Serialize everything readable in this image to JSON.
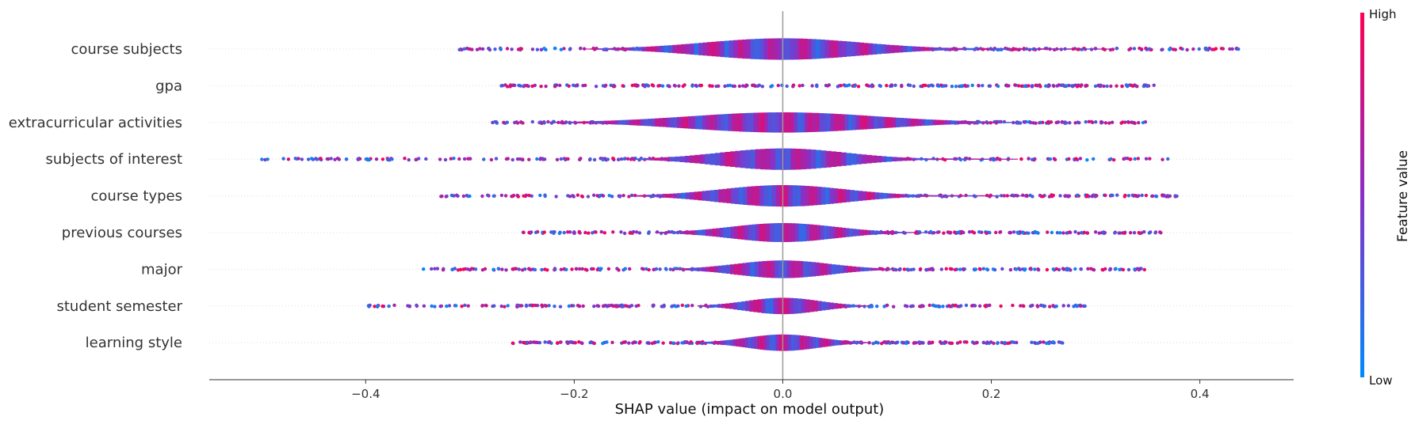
{
  "chart_data": {
    "type": "violin",
    "xlabel": "SHAP value (impact on model output)",
    "xlim": [
      -0.55,
      0.49
    ],
    "xticks": [
      -0.4,
      -0.2,
      0.0,
      0.2,
      0.4
    ],
    "xtick_labels": [
      "−0.4",
      "−0.2",
      "0.0",
      "0.2",
      "0.4"
    ],
    "features": [
      {
        "name": "course subjects",
        "min": -0.31,
        "max": 0.44,
        "center": 0.0,
        "spread": 0.075,
        "amp": 0.85,
        "tail": 0.55
      },
      {
        "name": "gpa",
        "min": -0.27,
        "max": 0.36,
        "center": 0.0,
        "spread": 0.12,
        "amp": 0.0,
        "tail": 0.0
      },
      {
        "name": "extracurricular activities",
        "min": -0.28,
        "max": 0.35,
        "center": 0.0,
        "spread": 0.09,
        "amp": 0.8,
        "tail": 0.45
      },
      {
        "name": "subjects of interest",
        "min": -0.5,
        "max": 0.37,
        "center": 0.0,
        "spread": 0.06,
        "amp": 0.85,
        "tail": 0.4
      },
      {
        "name": "course types",
        "min": -0.33,
        "max": 0.38,
        "center": 0.0,
        "spread": 0.06,
        "amp": 0.85,
        "tail": 0.4
      },
      {
        "name": "previous courses",
        "min": -0.25,
        "max": 0.37,
        "center": 0.0,
        "spread": 0.05,
        "amp": 0.75,
        "tail": 0.3
      },
      {
        "name": "major",
        "min": -0.35,
        "max": 0.35,
        "center": 0.0,
        "spread": 0.045,
        "amp": 0.7,
        "tail": 0.2
      },
      {
        "name": "student semester",
        "min": -0.4,
        "max": 0.29,
        "center": 0.0,
        "spread": 0.035,
        "amp": 0.65,
        "tail": 0.18
      },
      {
        "name": "learning style",
        "min": -0.26,
        "max": 0.27,
        "center": 0.0,
        "spread": 0.035,
        "amp": 0.65,
        "tail": 0.18
      }
    ],
    "colorbar": {
      "label": "Feature value",
      "high_label": "High",
      "low_label": "Low",
      "high_color": "#ff0052",
      "low_color": "#008bfb"
    }
  }
}
